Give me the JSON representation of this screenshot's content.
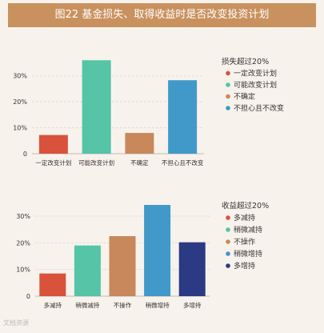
{
  "header": {
    "title": "图22 基金损失、取得收益时是否改变投资计划"
  },
  "watermark": {
    "text": "文档资源"
  },
  "chart_data": [
    {
      "type": "bar",
      "legend_title": "损失超过20%",
      "categories": [
        "一定改变计划",
        "可能改变计划",
        "不确定",
        "不担心且不改变"
      ],
      "values": [
        7.2,
        36.0,
        8.0,
        28.3
      ],
      "colors": [
        "#d9523b",
        "#55c4a7",
        "#c8885b",
        "#4199c9"
      ],
      "yticks": [
        "0",
        "10%",
        "20%",
        "30%"
      ],
      "ylim": [
        0,
        37
      ],
      "grid": true,
      "legend_position": "right"
    },
    {
      "type": "bar",
      "legend_title": "收益超过20%",
      "categories": [
        "多减持",
        "稍微减持",
        "不操作",
        "稍微增持",
        "多增持"
      ],
      "values": [
        8.5,
        19.0,
        22.5,
        34.2,
        20.2
      ],
      "colors": [
        "#d9523b",
        "#55c4a7",
        "#c8885b",
        "#4199c9",
        "#2a3a84"
      ],
      "yticks": [
        "0",
        "10%",
        "20%",
        "30%"
      ],
      "ylim": [
        0,
        36
      ],
      "grid": true,
      "legend_position": "right"
    }
  ]
}
